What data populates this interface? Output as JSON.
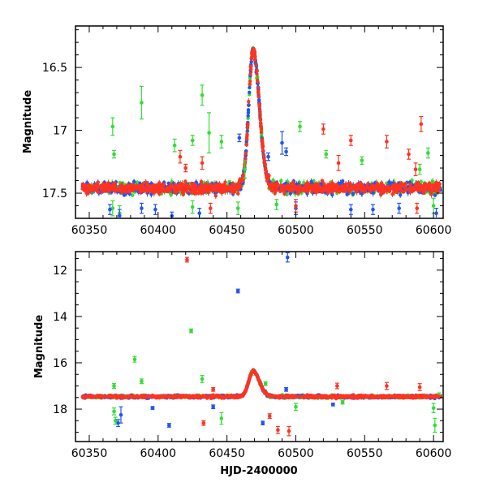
{
  "chart_data": [
    {
      "type": "scatter",
      "title": "",
      "xlabel": "",
      "ylabel": "Magnitude",
      "xlim": [
        60340,
        60607
      ],
      "ylim": [
        17.7,
        16.17
      ],
      "y_inverted": true,
      "grid": false,
      "x_ticks": [
        60350,
        60400,
        60450,
        60500,
        60550,
        60600
      ],
      "y_ticks": [
        16.5,
        17,
        17.5
      ],
      "y_tick_labels": [
        "16.5",
        "17",
        "17.5"
      ],
      "baseline_mag": 17.46,
      "flare_peak": {
        "x": 60469,
        "y": 16.36
      },
      "series": [
        {
          "color": "#33dd33",
          "outliers": [
            {
              "x": 60367,
              "y": 16.97,
              "err": 0.07
            },
            {
              "x": 60368,
              "y": 17.19,
              "err": 0.03
            },
            {
              "x": 60388,
              "y": 16.78,
              "err": 0.13
            },
            {
              "x": 60412,
              "y": 17.12,
              "err": 0.05
            },
            {
              "x": 60425,
              "y": 17.08,
              "err": 0.04
            },
            {
              "x": 60432,
              "y": 16.72,
              "err": 0.08
            },
            {
              "x": 60437,
              "y": 17.02,
              "err": 0.16
            },
            {
              "x": 60446,
              "y": 17.09,
              "err": 0.05
            },
            {
              "x": 60463,
              "y": 17.31,
              "err": 0.07
            },
            {
              "x": 60503,
              "y": 16.97,
              "err": 0.04
            },
            {
              "x": 60522,
              "y": 17.19,
              "err": 0.03
            },
            {
              "x": 60548,
              "y": 17.24,
              "err": 0.03
            },
            {
              "x": 60590,
              "y": 17.31,
              "err": 0.04
            },
            {
              "x": 60596,
              "y": 17.18,
              "err": 0.04
            },
            {
              "x": 60367,
              "y": 17.62,
              "err": 0.06
            },
            {
              "x": 60372,
              "y": 17.66,
              "err": 0.06
            },
            {
              "x": 60425,
              "y": 17.61,
              "err": 0.05
            },
            {
              "x": 60458,
              "y": 17.62,
              "err": 0.05
            },
            {
              "x": 60486,
              "y": 17.59,
              "err": 0.04
            },
            {
              "x": 60600,
              "y": 17.6,
              "err": 0.06
            }
          ]
        },
        {
          "color": "#2255ee",
          "outliers": [
            {
              "x": 60365,
              "y": 17.63,
              "err": 0.04
            },
            {
              "x": 60372,
              "y": 17.68,
              "err": 0.05
            },
            {
              "x": 60388,
              "y": 17.62,
              "err": 0.04
            },
            {
              "x": 60398,
              "y": 17.63,
              "err": 0.04
            },
            {
              "x": 60410,
              "y": 17.68,
              "err": 0.03
            },
            {
              "x": 60430,
              "y": 17.66,
              "err": 0.04
            },
            {
              "x": 60459,
              "y": 17.06,
              "err": 0.03
            },
            {
              "x": 60480,
              "y": 17.21,
              "err": 0.03
            },
            {
              "x": 60490,
              "y": 17.1,
              "err": 0.09
            },
            {
              "x": 60493,
              "y": 17.17,
              "err": 0.03
            },
            {
              "x": 60500,
              "y": 17.62,
              "err": 0.05
            },
            {
              "x": 60540,
              "y": 17.63,
              "err": 0.04
            },
            {
              "x": 60556,
              "y": 17.63,
              "err": 0.04
            },
            {
              "x": 60575,
              "y": 17.62,
              "err": 0.04
            },
            {
              "x": 60602,
              "y": 17.66,
              "err": 0.04
            }
          ]
        },
        {
          "color": "#ff3322",
          "outliers": [
            {
              "x": 60416,
              "y": 17.21,
              "err": 0.05
            },
            {
              "x": 60420,
              "y": 17.3,
              "err": 0.03
            },
            {
              "x": 60432,
              "y": 17.26,
              "err": 0.05
            },
            {
              "x": 60520,
              "y": 16.99,
              "err": 0.04
            },
            {
              "x": 60531,
              "y": 17.26,
              "err": 0.06
            },
            {
              "x": 60540,
              "y": 17.08,
              "err": 0.04
            },
            {
              "x": 60566,
              "y": 17.09,
              "err": 0.05
            },
            {
              "x": 60582,
              "y": 17.19,
              "err": 0.04
            },
            {
              "x": 60587,
              "y": 17.31,
              "err": 0.05
            },
            {
              "x": 60591,
              "y": 16.95,
              "err": 0.06
            },
            {
              "x": 60438,
              "y": 17.62,
              "err": 0.04
            },
            {
              "x": 60500,
              "y": 17.6,
              "err": 0.05
            },
            {
              "x": 60588,
              "y": 17.62,
              "err": 0.04
            }
          ]
        }
      ]
    },
    {
      "type": "scatter",
      "title": "",
      "xlabel": "HJD-2400000",
      "ylabel": "Magnitude",
      "xlim": [
        60340,
        60607
      ],
      "ylim": [
        19.4,
        11.2
      ],
      "y_inverted": true,
      "grid": false,
      "x_ticks": [
        60350,
        60400,
        60450,
        60500,
        60550,
        60600
      ],
      "y_ticks": [
        12,
        14,
        16,
        18
      ],
      "y_tick_labels": [
        "12",
        "14",
        "16",
        "18"
      ],
      "baseline_mag": 17.46,
      "flare_peak": {
        "x": 60469,
        "y": 16.36
      },
      "series": [
        {
          "color": "#33dd33",
          "outliers": [
            {
              "x": 60368,
              "y": 17.0,
              "err": 0.1
            },
            {
              "x": 60368,
              "y": 18.1,
              "err": 0.15
            },
            {
              "x": 60369,
              "y": 18.5,
              "err": 0.15
            },
            {
              "x": 60383,
              "y": 15.85,
              "err": 0.12
            },
            {
              "x": 60388,
              "y": 16.8,
              "err": 0.1
            },
            {
              "x": 60424,
              "y": 14.62,
              "err": 0.08
            },
            {
              "x": 60432,
              "y": 16.7,
              "err": 0.15
            },
            {
              "x": 60446,
              "y": 18.4,
              "err": 0.25
            },
            {
              "x": 60468,
              "y": 16.45,
              "err": 0.1
            },
            {
              "x": 60478,
              "y": 16.9,
              "err": 0.08
            },
            {
              "x": 60500,
              "y": 17.9,
              "err": 0.15
            },
            {
              "x": 60534,
              "y": 17.7,
              "err": 0.08
            },
            {
              "x": 60600,
              "y": 17.95,
              "err": 0.2
            },
            {
              "x": 60601,
              "y": 18.7,
              "err": 0.3
            },
            {
              "x": 60604,
              "y": 17.4,
              "err": 0.1
            }
          ]
        },
        {
          "color": "#2255ee",
          "outliers": [
            {
              "x": 60458,
              "y": 12.9,
              "err": 0.08
            },
            {
              "x": 60494,
              "y": 11.45,
              "err": 0.2
            },
            {
              "x": 60371,
              "y": 18.6,
              "err": 0.15
            },
            {
              "x": 60373,
              "y": 18.25,
              "err": 0.35
            },
            {
              "x": 60408,
              "y": 18.7,
              "err": 0.08
            },
            {
              "x": 60476,
              "y": 18.6,
              "err": 0.08
            },
            {
              "x": 60440,
              "y": 17.9,
              "err": 0.08
            },
            {
              "x": 60396,
              "y": 17.95,
              "err": 0.06
            },
            {
              "x": 60527,
              "y": 17.8,
              "err": 0.06
            },
            {
              "x": 60493,
              "y": 17.15,
              "err": 0.08
            }
          ]
        },
        {
          "color": "#ff3322",
          "outliers": [
            {
              "x": 60421,
              "y": 11.55,
              "err": 0.1
            },
            {
              "x": 60433,
              "y": 18.6,
              "err": 0.1
            },
            {
              "x": 60481,
              "y": 18.3,
              "err": 0.1
            },
            {
              "x": 60487,
              "y": 18.9,
              "err": 0.15
            },
            {
              "x": 60495,
              "y": 18.95,
              "err": 0.2
            },
            {
              "x": 60530,
              "y": 17.0,
              "err": 0.12
            },
            {
              "x": 60566,
              "y": 17.0,
              "err": 0.15
            },
            {
              "x": 60590,
              "y": 17.05,
              "err": 0.15
            },
            {
              "x": 60440,
              "y": 17.15,
              "err": 0.08
            }
          ]
        }
      ]
    }
  ]
}
